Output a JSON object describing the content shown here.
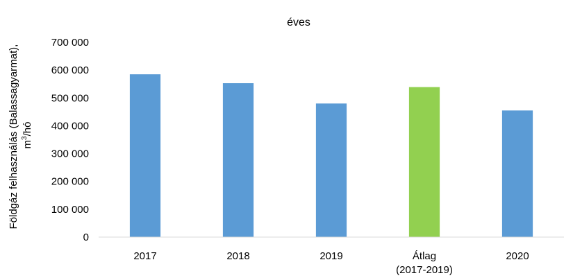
{
  "chart_data": {
    "type": "bar",
    "title": "éves",
    "ylabel_line1": "Földgáz felhasználás (Balassagyarmat),",
    "ylabel_line2_pre": "m",
    "ylabel_line2_sup": "3",
    "ylabel_line2_post": "/hó",
    "categories": [
      [
        "2017"
      ],
      [
        "2018"
      ],
      [
        "2019"
      ],
      [
        "Átlag",
        "(2017-2019)"
      ],
      [
        "2020"
      ]
    ],
    "values": [
      585000,
      553000,
      480000,
      539000,
      455000
    ],
    "bar_colors": [
      "#5b9bd5",
      "#5b9bd5",
      "#5b9bd5",
      "#92d050",
      "#5b9bd5"
    ],
    "ylim": [
      0,
      700000
    ],
    "yticks": [
      0,
      100000,
      200000,
      300000,
      400000,
      500000,
      600000,
      700000
    ],
    "ytick_labels": [
      "0",
      "100 000",
      "200 000",
      "300 000",
      "400 000",
      "500 000",
      "600 000",
      "700 000"
    ],
    "grid": false,
    "axis_color": "#d9d9d9"
  }
}
